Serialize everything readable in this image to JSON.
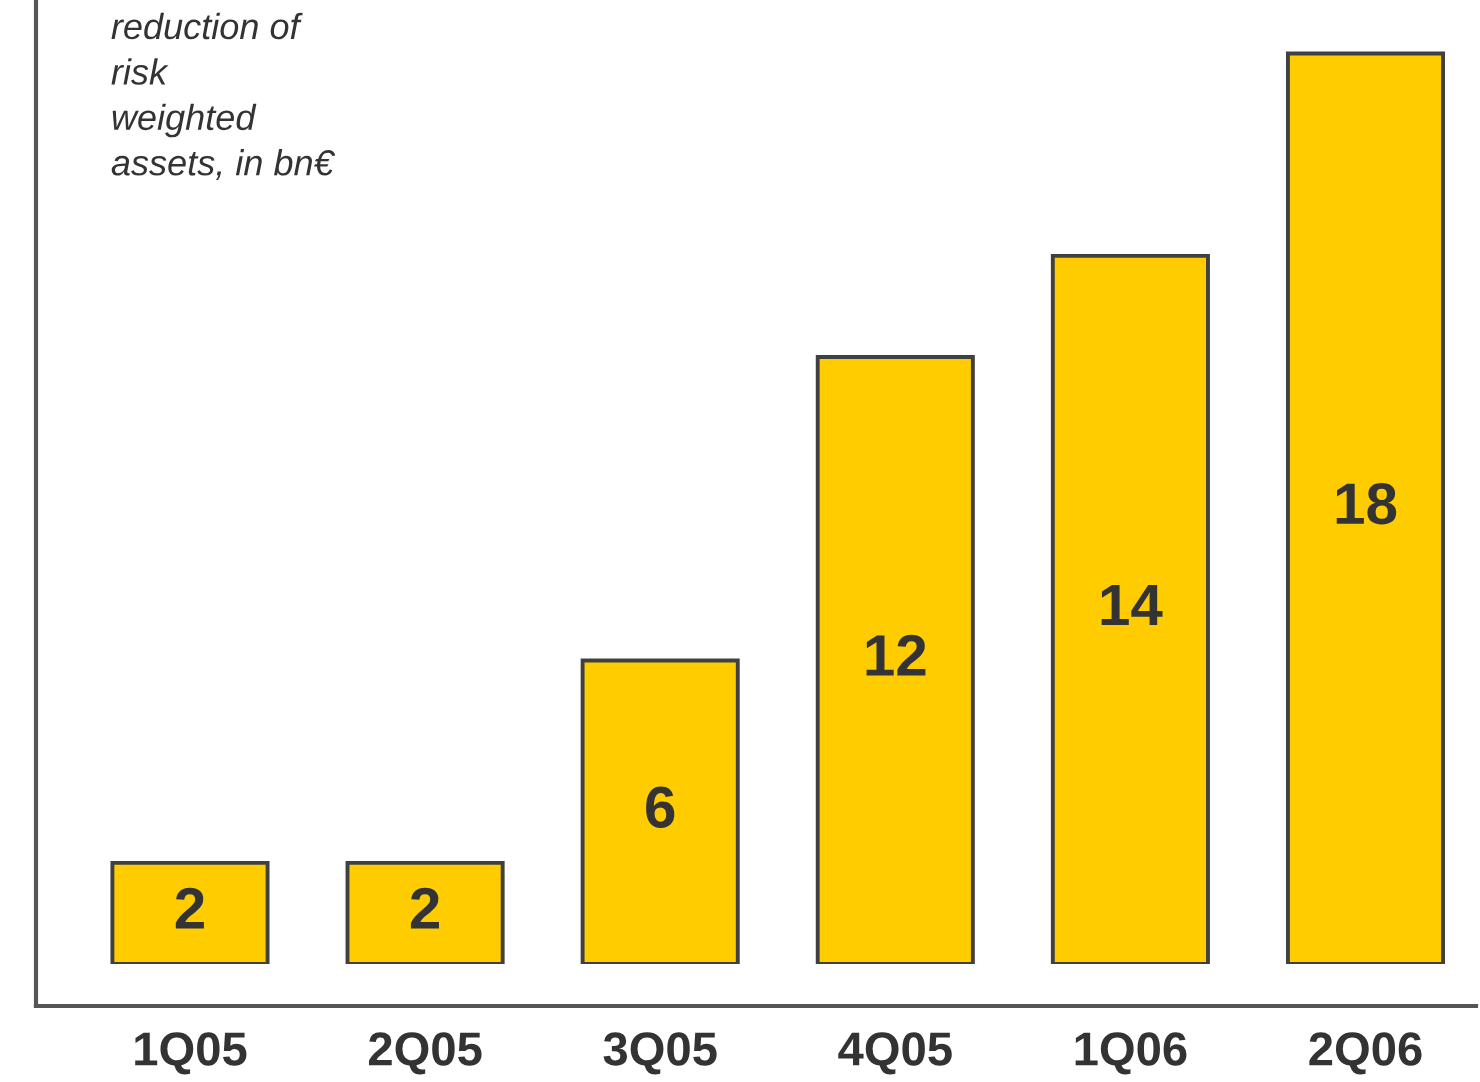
{
  "chart_data": {
    "type": "bar",
    "ylabel": "reduction of\nrisk\nweighted\nassets, in bn€",
    "categories": [
      "1Q05",
      "2Q05",
      "3Q05",
      "4Q05",
      "1Q06",
      "2Q06"
    ],
    "values": [
      2,
      2,
      6,
      12,
      14,
      18
    ],
    "color": "#ffcc00",
    "data_labels": true,
    "tick_labels": "x"
  }
}
